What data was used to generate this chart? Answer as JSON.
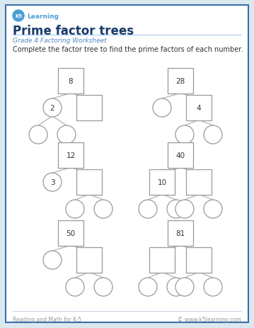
{
  "title": "Prime factor trees",
  "subtitle": "Grade 4 Factoring Worksheet",
  "instruction": "Complete the factor tree to find the prime factors of each number.",
  "footer_left": "Reading and Math for K-5",
  "footer_right": "© www.k5learning.com",
  "bg_color": "#dce8f0",
  "page_bg": "#ffffff",
  "border_color": "#3a6fa8",
  "title_color": "#1a3a6b",
  "subtitle_color": "#5588bb",
  "instruction_color": "#333333",
  "footer_color": "#999999",
  "node_edge_color": "#999999",
  "line_color": "#aaaaaa",
  "trees": [
    {
      "number": "8",
      "col": 0,
      "row": 0,
      "left_child": {
        "type": "circle",
        "label": "2"
      },
      "right_child": {
        "type": "square",
        "label": ""
      },
      "left_gc": [
        {
          "type": "circle",
          "label": ""
        },
        {
          "type": "circle",
          "label": ""
        }
      ],
      "right_gc": null
    },
    {
      "number": "28",
      "col": 1,
      "row": 0,
      "left_child": {
        "type": "circle",
        "label": ""
      },
      "right_child": {
        "type": "square",
        "label": "4"
      },
      "left_gc": null,
      "right_gc": [
        {
          "type": "circle",
          "label": ""
        },
        {
          "type": "circle",
          "label": ""
        }
      ]
    },
    {
      "number": "12",
      "col": 0,
      "row": 1,
      "left_child": {
        "type": "circle",
        "label": "3"
      },
      "right_child": {
        "type": "square",
        "label": ""
      },
      "left_gc": null,
      "right_gc": [
        {
          "type": "circle",
          "label": ""
        },
        {
          "type": "circle",
          "label": ""
        }
      ]
    },
    {
      "number": "40",
      "col": 1,
      "row": 1,
      "left_child": {
        "type": "square",
        "label": "10"
      },
      "right_child": {
        "type": "square",
        "label": ""
      },
      "left_gc": [
        {
          "type": "circle",
          "label": ""
        },
        {
          "type": "circle",
          "label": ""
        }
      ],
      "right_gc": [
        {
          "type": "circle",
          "label": ""
        },
        {
          "type": "circle",
          "label": ""
        }
      ]
    },
    {
      "number": "50",
      "col": 0,
      "row": 2,
      "left_child": {
        "type": "circle",
        "label": ""
      },
      "right_child": {
        "type": "square",
        "label": ""
      },
      "left_gc": null,
      "right_gc": [
        {
          "type": "circle",
          "label": ""
        },
        {
          "type": "circle",
          "label": ""
        }
      ]
    },
    {
      "number": "81",
      "col": 1,
      "row": 2,
      "left_child": {
        "type": "square",
        "label": ""
      },
      "right_child": {
        "type": "square",
        "label": ""
      },
      "left_gc": [
        {
          "type": "circle",
          "label": ""
        },
        {
          "type": "circle",
          "label": ""
        }
      ],
      "right_gc": [
        {
          "type": "circle",
          "label": ""
        },
        {
          "type": "circle",
          "label": ""
        }
      ]
    }
  ]
}
